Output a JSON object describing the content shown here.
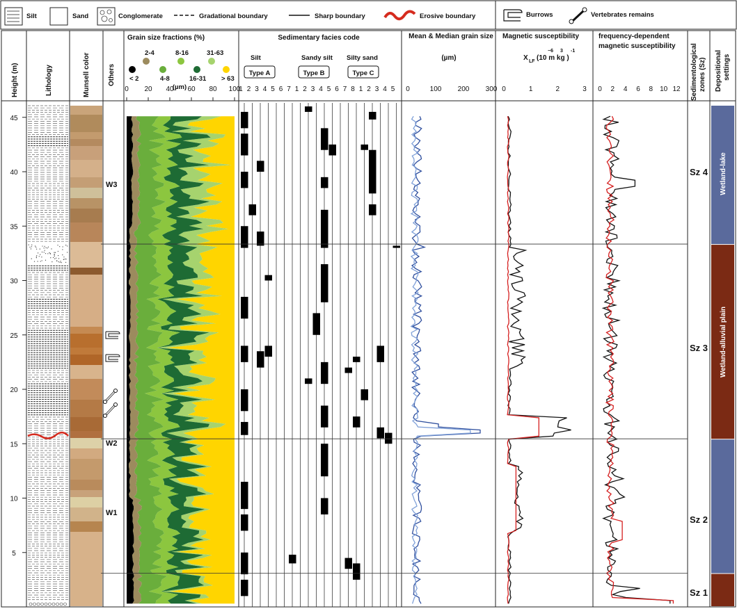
{
  "legend": {
    "silt": "Silt",
    "sand": "Sand",
    "conglomerate": "Conglomerate",
    "gradational": "Gradational boundary",
    "sharp": "Sharp boundary",
    "erosive": "Erosive boundary",
    "burrows": "Burrows",
    "vertebrates": "Vertebrates remains"
  },
  "columns": {
    "height": "Height (m)",
    "lithology": "Lithology",
    "munsell": "Munsell color",
    "others": "Others",
    "grain": "Grain size fractions (%)",
    "facies": "Sedimentary facies code",
    "mean": "Mean & Median grain size",
    "mean_unit": "(µm)",
    "mag": "Magnetic susceptibility",
    "mag_unit": "X",
    "mag_sub": "LF",
    "mag_unit2": "(10  m kg  )",
    "mag_exp1": "−6",
    "mag_exp2": "3",
    "mag_exp3": "-1",
    "fd": "frequency-dependent",
    "fd2": "magnetic susceptibility",
    "zones1": "Sedimentological",
    "zones2": "zones (Sz)",
    "settings1": "Depositional",
    "settings2": "settings"
  },
  "grain_legend": {
    "labels": [
      "< 2",
      "2-4",
      "4-8",
      "8-16",
      "16-31",
      "31-63",
      "> 63"
    ],
    "colors": [
      "#000000",
      "#9c8b5e",
      "#6aae3c",
      "#8cc63f",
      "#1e6b34",
      "#a6d36e",
      "#ffd500"
    ],
    "unit": "(µm)"
  },
  "facies": {
    "groups": [
      {
        "name": "Silt",
        "type": "Type A"
      },
      {
        "name": "Sandy silt",
        "type": "Type B"
      },
      {
        "name": "Silty sand",
        "type": "Type C"
      }
    ],
    "code_labels": [
      "1",
      "2",
      "3",
      "4",
      "5",
      "6",
      "7",
      "1",
      "2",
      "3",
      "4",
      "5",
      "6",
      "7",
      "8",
      "1",
      "2",
      "3",
      "4",
      "5"
    ]
  },
  "others": [
    "W3",
    "W2",
    "W1"
  ],
  "zones": [
    "Sz 4",
    "Sz 3",
    "Sz 2",
    "Sz 1"
  ],
  "settings": [
    {
      "label": "Wetland-lake",
      "color": "#5a6a9c"
    },
    {
      "label": "Wetland-alluvial plain",
      "color": "#7b2a14"
    }
  ],
  "chart_data": [
    {
      "type": "area",
      "title": "Grain size fractions (%)",
      "xlabel": "%",
      "ylabel": "Height (m)",
      "xlim": [
        0,
        100
      ],
      "ylim": [
        0,
        47
      ],
      "xticks": [
        0,
        20,
        40,
        60,
        80,
        100
      ],
      "yticks": [
        5,
        10,
        15,
        20,
        25,
        30,
        35,
        40,
        45
      ],
      "series_names": [
        "< 2",
        "2-4",
        "4-8",
        "8-16",
        "16-31",
        "31-63",
        "> 63"
      ]
    },
    {
      "type": "line",
      "title": "Mean & Median grain size",
      "xlabel": "(µm)",
      "xlim": [
        0,
        300
      ],
      "xticks": [
        0,
        100,
        200,
        300
      ]
    },
    {
      "type": "line",
      "title": "Magnetic susceptibility",
      "xlim": [
        0,
        3
      ],
      "xticks": [
        0,
        1,
        2,
        3
      ]
    },
    {
      "type": "line",
      "title": "frequency-dependent magnetic susceptibility",
      "xlim": [
        0,
        12
      ],
      "xticks": [
        0,
        2,
        4,
        6,
        8,
        10,
        12
      ]
    }
  ]
}
